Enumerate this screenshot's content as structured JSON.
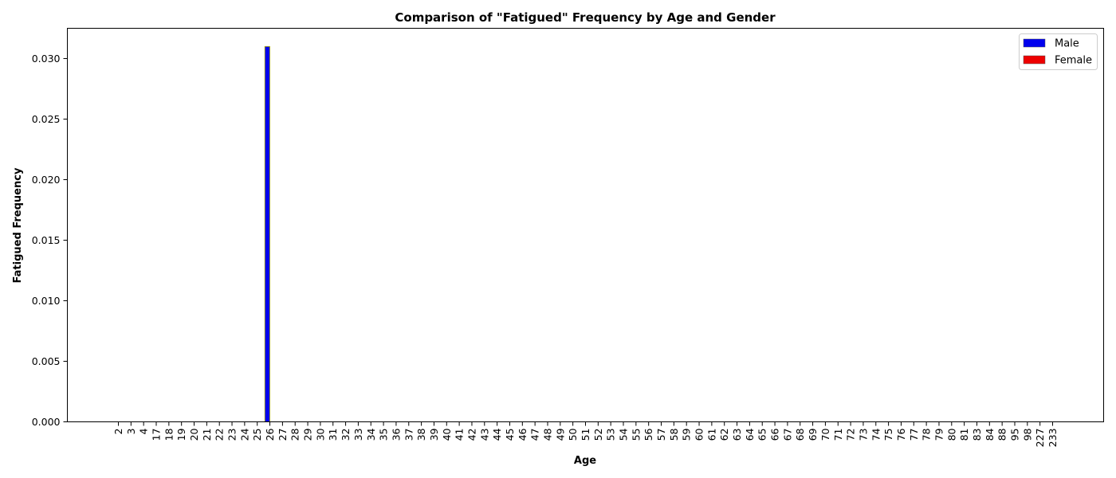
{
  "chart_data": {
    "type": "bar",
    "title": "Comparison of \"Fatigued\" Frequency by Age and Gender",
    "xlabel": "Age",
    "ylabel": "Fatigued Frequency",
    "categories": [
      "2",
      "3",
      "4",
      "17",
      "18",
      "19",
      "20",
      "21",
      "22",
      "23",
      "24",
      "25",
      "26",
      "27",
      "28",
      "29",
      "30",
      "31",
      "32",
      "33",
      "34",
      "35",
      "36",
      "37",
      "38",
      "39",
      "40",
      "41",
      "42",
      "43",
      "44",
      "45",
      "46",
      "47",
      "48",
      "49",
      "50",
      "51",
      "52",
      "53",
      "54",
      "55",
      "56",
      "57",
      "58",
      "59",
      "60",
      "61",
      "62",
      "63",
      "64",
      "65",
      "66",
      "67",
      "68",
      "69",
      "70",
      "71",
      "72",
      "73",
      "74",
      "75",
      "76",
      "77",
      "78",
      "79",
      "80",
      "81",
      "83",
      "84",
      "88",
      "95",
      "98",
      "227",
      "233"
    ],
    "series": [
      {
        "name": "Male",
        "color": "#0000ee",
        "values": [
          0,
          0,
          0,
          0,
          0,
          0,
          0,
          0,
          0,
          0,
          0,
          0,
          0.031,
          0,
          0,
          0,
          0,
          0,
          0,
          0,
          0,
          0,
          0,
          0,
          0,
          0,
          0,
          0,
          0,
          0,
          0,
          0,
          0,
          0,
          0,
          0,
          0,
          0,
          0,
          0,
          0,
          0,
          0,
          0,
          0,
          0,
          0,
          0,
          0,
          0,
          0,
          0,
          0,
          0,
          0,
          0,
          0,
          0,
          0,
          0,
          0,
          0,
          0,
          0,
          0,
          0,
          0,
          0,
          0,
          0,
          0,
          0,
          0,
          0,
          0
        ]
      },
      {
        "name": "Female",
        "color": "#ee0000",
        "values": [
          0,
          0,
          0,
          0,
          0,
          0,
          0,
          0,
          0,
          0,
          0,
          0,
          0,
          0,
          0,
          0,
          0,
          0,
          0,
          0,
          0,
          0,
          0,
          0,
          0,
          0,
          0,
          0,
          0,
          0,
          0,
          0,
          0,
          0,
          0,
          0,
          0,
          0,
          0,
          0,
          0,
          0,
          0,
          0,
          0,
          0,
          0,
          0,
          0,
          0,
          0,
          0,
          0,
          0,
          0,
          0,
          0,
          0,
          0,
          0,
          0,
          0,
          0,
          0,
          0,
          0,
          0,
          0,
          0,
          0,
          0,
          0,
          0,
          0,
          0
        ]
      }
    ],
    "yticks": [
      0.0,
      0.005,
      0.01,
      0.015,
      0.02,
      0.025,
      0.03
    ],
    "ytick_labels": [
      "0.000",
      "0.005",
      "0.010",
      "0.015",
      "0.020",
      "0.025",
      "0.030"
    ],
    "ylim": [
      0,
      0.0325
    ],
    "grid": false,
    "legend_position": "top-right"
  }
}
